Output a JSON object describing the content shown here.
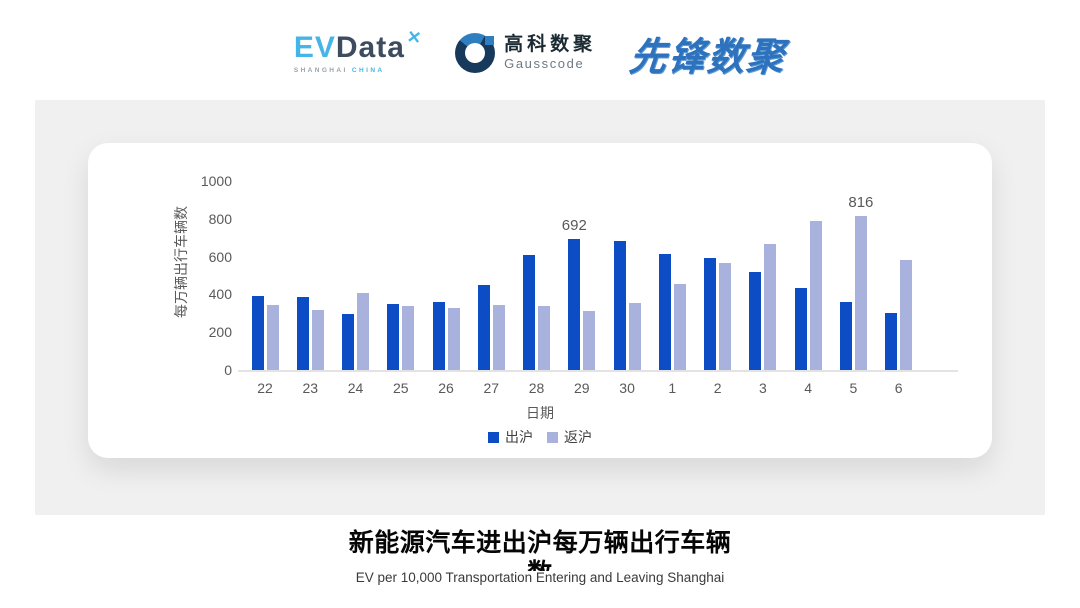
{
  "header": {
    "evdata_logo": {
      "ev": "EV",
      "data": "Data",
      "star": "✕",
      "sub_left": "SHANGHAI",
      "sub_right": "CHINA"
    },
    "gausscode_logo": {
      "cn": "高科数聚",
      "en": "Gausscode"
    },
    "pioneer_logo": {
      "text": "先锋数聚"
    }
  },
  "chart_data": {
    "type": "bar",
    "title": "",
    "categories": [
      "22",
      "23",
      "24",
      "25",
      "26",
      "27",
      "28",
      "29",
      "30",
      "1",
      "2",
      "3",
      "4",
      "5",
      "6"
    ],
    "series": [
      {
        "name": "出沪",
        "color": "#0c4cc5",
        "values": [
          390,
          385,
          295,
          350,
          360,
          450,
          610,
          692,
          680,
          612,
          590,
          520,
          435,
          360,
          300
        ]
      },
      {
        "name": "返沪",
        "color": "#a9b2dc",
        "values": [
          345,
          320,
          405,
          340,
          330,
          345,
          338,
          310,
          355,
          455,
          568,
          665,
          788,
          816,
          580
        ]
      }
    ],
    "annotations": [
      {
        "series": 0,
        "index": 7,
        "text": "692"
      },
      {
        "series": 1,
        "index": 13,
        "text": "816"
      }
    ],
    "ylabel": "每万辆出行车辆数",
    "xlabel": "日期",
    "ylim": [
      0,
      1000
    ],
    "yticks": [
      0,
      200,
      400,
      600,
      800,
      1000
    ],
    "grid": false,
    "legend_position": "bottom"
  },
  "footer": {
    "title": "新能源汽车进出沪每万辆出行车辆数",
    "subtitle": "EV per 10,000 Transportation Entering and Leaving Shanghai"
  },
  "colors": {
    "series_out": "#0c4cc5",
    "series_return": "#a9b2dc",
    "panel_bg": "#f0f0f1",
    "axis_text": "#595959",
    "axis_line": "#e3e3e3"
  }
}
